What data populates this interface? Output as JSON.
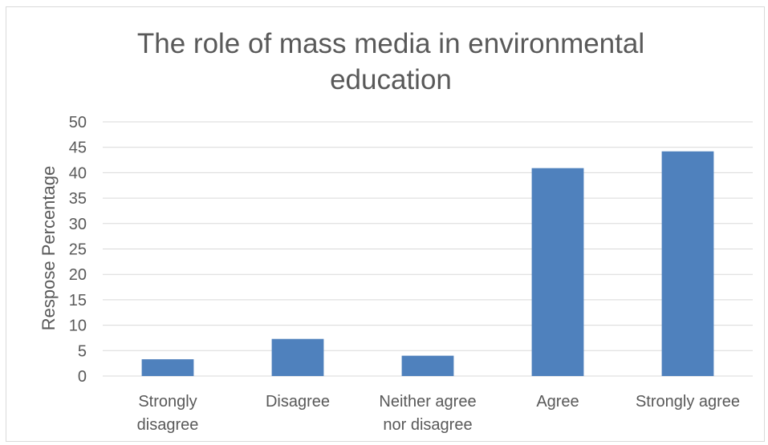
{
  "chart_data": {
    "type": "bar",
    "title_lines": [
      "The role of mass media in environmental",
      "education"
    ],
    "ylabel": "Respose Percentage",
    "xlabel": "",
    "categories": [
      [
        "Strongly",
        "disagree"
      ],
      [
        "Disagree"
      ],
      [
        "Neither agree",
        "nor disagree"
      ],
      [
        "Agree"
      ],
      [
        "Strongly agree"
      ]
    ],
    "values": [
      3.3,
      7.3,
      4.0,
      40.9,
      44.2
    ],
    "ylim": [
      0,
      50
    ],
    "yticks": [
      0,
      5,
      10,
      15,
      20,
      25,
      30,
      35,
      40,
      45,
      50
    ],
    "grid": true,
    "legend": "none",
    "bar_color": "#4f81bd"
  }
}
